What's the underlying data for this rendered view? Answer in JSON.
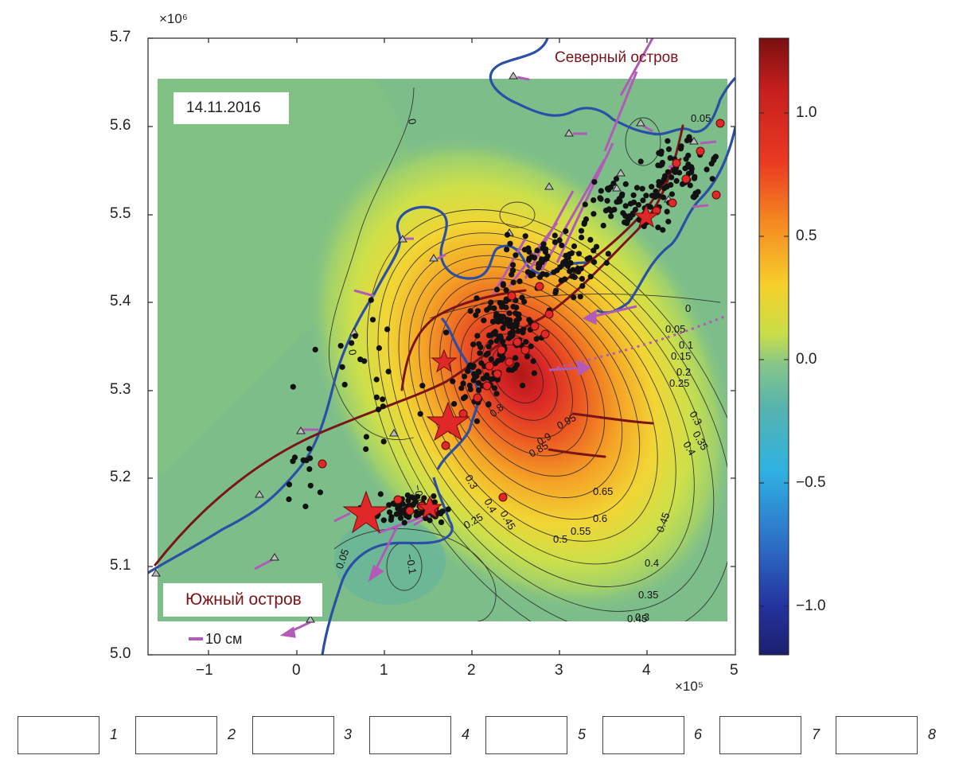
{
  "map": {
    "date_label": "14.11.2016",
    "north_island_label": "Северный остров",
    "south_island_label": "Южный остров",
    "scale_label": "10 см",
    "y_exponent": "×10⁶",
    "x_exponent": "×10⁵",
    "y_ticks": [
      "5.0",
      "5.1",
      "5.2",
      "5.3",
      "5.4",
      "5.5",
      "5.6",
      "5.7"
    ],
    "x_ticks": [
      "−1",
      "0",
      "1",
      "2",
      "3",
      "4",
      "5"
    ]
  },
  "colorbar": {
    "ticks": [
      "1.0",
      "0.5",
      "0.0",
      "−0.5",
      "−1.0"
    ],
    "range": [
      -1.2,
      1.3
    ]
  },
  "contour_labels": [
    "0",
    "0",
    "0",
    "0.05",
    "0.05",
    "0.1",
    "0.15",
    "0.2",
    "0.25",
    "0.3",
    "0.35",
    "0.4",
    "0.45",
    "0.5",
    "0.55",
    "0.6",
    "0.65",
    "0.35",
    "0.4",
    "0.45",
    "0.3",
    "0.25",
    "0.9",
    "0.95",
    "0.85",
    "0.8",
    "−0.1",
    "0.05",
    "−0.05",
    "0.3",
    "0.4",
    "0.45"
  ],
  "legend": {
    "items": [
      {
        "num": "1"
      },
      {
        "num": "2"
      },
      {
        "num": "3"
      },
      {
        "num": "4"
      },
      {
        "num": "5"
      },
      {
        "num": "6"
      },
      {
        "num": "7"
      },
      {
        "num": "8"
      }
    ]
  },
  "colors": {
    "coast": "#2b4fa6",
    "fault": "#7a1418",
    "gps": "#b25ab8",
    "quake": "#e02828",
    "background": "#7cbd8a"
  }
}
